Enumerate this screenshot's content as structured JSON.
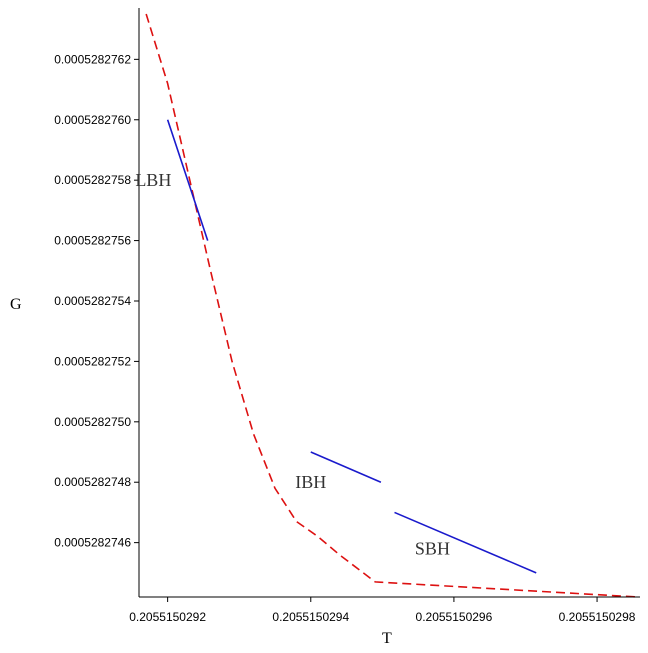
{
  "chart_data": {
    "type": "line",
    "xlabel": "T",
    "ylabel": "G",
    "xlim": [
      0.20551502916,
      0.20551502986
    ],
    "ylim": [
      0.00052827442,
      0.00052827637
    ],
    "x_ticks": [
      0.2055150292,
      0.2055150294,
      0.2055150296,
      0.2055150298
    ],
    "x_tick_labels": [
      "0.2055150292",
      "0.2055150294",
      "0.2055150296",
      "0.2055150298"
    ],
    "y_ticks": [
      0.0005282746,
      0.0005282748,
      0.000528275,
      0.0005282752,
      0.0005282754,
      0.0005282756,
      0.0005282758,
      0.000528276,
      0.0005282762
    ],
    "y_tick_labels": [
      "0.0005282746",
      "0.0005282748",
      "0.0005282750",
      "0.0005282752",
      "0.0005282754",
      "0.0005282756",
      "0.0005282758",
      "0.0005282760",
      "0.0005282762"
    ],
    "grid": false,
    "annotations": [
      {
        "text": "LBH",
        "x": 0.20551502918,
        "y": 0.0005282758
      },
      {
        "text": "IBH",
        "x": 0.2055150294,
        "y": 0.0005282748
      },
      {
        "text": "SBH",
        "x": 0.20551502957,
        "y": 0.00052827458
      }
    ],
    "series": [
      {
        "color": "#dd1111",
        "dashed": true,
        "points": [
          [
            0.20551502917,
            0.00052827635
          ],
          [
            0.2055150292,
            0.00052827612
          ],
          [
            0.20551502923,
            0.00052827581
          ],
          [
            0.20551502926,
            0.0005282755
          ],
          [
            0.20551502929,
            0.0005282752
          ],
          [
            0.20551502932,
            0.00052827496
          ],
          [
            0.20551502935,
            0.00052827478
          ],
          [
            0.20551502938,
            0.00052827467
          ],
          [
            0.20551502941,
            0.00052827462
          ],
          [
            0.20551502944,
            0.00052827456
          ],
          [
            0.20551502949,
            0.00052827447
          ],
          [
            0.205515029857,
            0.00052827442
          ]
        ]
      },
      {
        "color": "#1a1acc",
        "dashed": false,
        "points": [
          [
            0.2055150292,
            0.000528276
          ],
          [
            0.205515029256,
            0.0005282756
          ]
        ]
      },
      {
        "color": "#1a1acc",
        "dashed": false,
        "points": [
          [
            0.2055150294,
            0.0005282749
          ],
          [
            0.205515029498,
            0.0005282748
          ]
        ]
      },
      {
        "color": "#1a1acc",
        "dashed": false,
        "points": [
          [
            0.205515029517,
            0.0005282747
          ],
          [
            0.205515029715,
            0.0005282745
          ]
        ]
      }
    ]
  }
}
